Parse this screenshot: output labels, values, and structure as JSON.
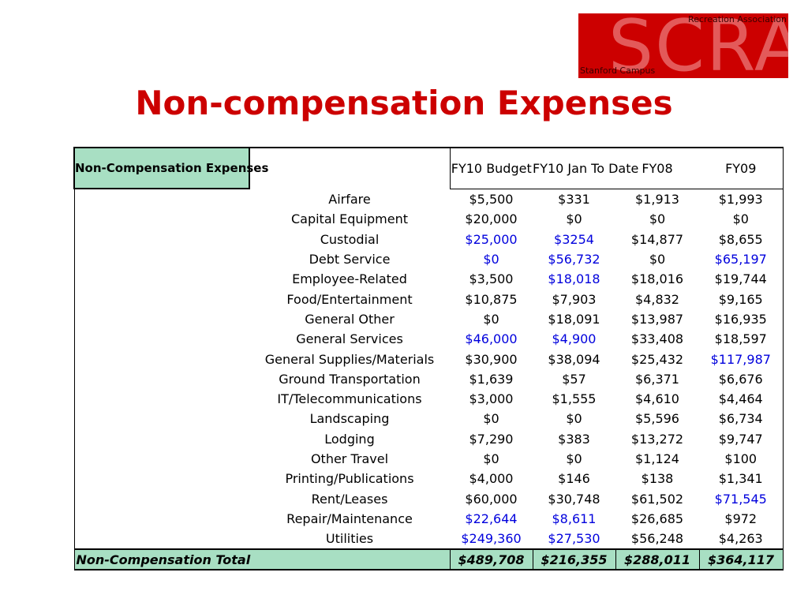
{
  "logo": {
    "big_text": "SCRA",
    "top_text": "Recreation Association",
    "bottom_text": "Stanford Campus"
  },
  "title": "Non-compensation Expenses",
  "colors": {
    "title_red": "#cc0000",
    "header_green": "#a8dfc3",
    "highlight_blue": "#0000dd"
  },
  "table": {
    "header_label": "Non-Compensation Expenses",
    "columns": [
      "FY10 Budget",
      "FY10 Jan To Date",
      "FY08",
      "FY09"
    ],
    "rows": [
      {
        "name": "Airfare",
        "values": [
          "$5,500",
          "$331",
          "$1,913",
          "$1,993"
        ],
        "blue": [
          false,
          false,
          false,
          false
        ]
      },
      {
        "name": "Capital Equipment",
        "values": [
          "$20,000",
          "$0",
          "$0",
          "$0"
        ],
        "blue": [
          false,
          false,
          false,
          false
        ]
      },
      {
        "name": "Custodial",
        "values": [
          "$25,000",
          "$3254",
          "$14,877",
          "$8,655"
        ],
        "blue": [
          true,
          true,
          false,
          false
        ]
      },
      {
        "name": "Debt Service",
        "values": [
          "$0",
          "$56,732",
          "$0",
          "$65,197"
        ],
        "blue": [
          true,
          true,
          false,
          true
        ]
      },
      {
        "name": "Employee-Related",
        "values": [
          "$3,500",
          "$18,018",
          "$18,016",
          "$19,744"
        ],
        "blue": [
          false,
          true,
          false,
          false
        ]
      },
      {
        "name": "Food/Entertainment",
        "values": [
          "$10,875",
          "$7,903",
          "$4,832",
          "$9,165"
        ],
        "blue": [
          false,
          false,
          false,
          false
        ]
      },
      {
        "name": "General Other",
        "values": [
          "$0",
          "$18,091",
          "$13,987",
          "$16,935"
        ],
        "blue": [
          false,
          false,
          false,
          false
        ]
      },
      {
        "name": "General Services",
        "values": [
          "$46,000",
          "$4,900",
          "$33,408",
          "$18,597"
        ],
        "blue": [
          true,
          true,
          false,
          false
        ]
      },
      {
        "name": "General Supplies/Materials",
        "values": [
          "$30,900",
          "$38,094",
          "$25,432",
          "$117,987"
        ],
        "blue": [
          false,
          false,
          false,
          true
        ]
      },
      {
        "name": "Ground Transportation",
        "values": [
          "$1,639",
          "$57",
          "$6,371",
          "$6,676"
        ],
        "blue": [
          false,
          false,
          false,
          false
        ]
      },
      {
        "name": "IT/Telecommunications",
        "values": [
          "$3,000",
          "$1,555",
          "$4,610",
          "$4,464"
        ],
        "blue": [
          false,
          false,
          false,
          false
        ]
      },
      {
        "name": "Landscaping",
        "values": [
          "$0",
          "$0",
          "$5,596",
          "$6,734"
        ],
        "blue": [
          false,
          false,
          false,
          false
        ]
      },
      {
        "name": "Lodging",
        "values": [
          "$7,290",
          "$383",
          "$13,272",
          "$9,747"
        ],
        "blue": [
          false,
          false,
          false,
          false
        ]
      },
      {
        "name": "Other Travel",
        "values": [
          "$0",
          "$0",
          "$1,124",
          "$100"
        ],
        "blue": [
          false,
          false,
          false,
          false
        ]
      },
      {
        "name": "Printing/Publications",
        "values": [
          "$4,000",
          "$146",
          "$138",
          "$1,341"
        ],
        "blue": [
          false,
          false,
          false,
          false
        ]
      },
      {
        "name": "Rent/Leases",
        "values": [
          "$60,000",
          "$30,748",
          "$61,502",
          "$71,545"
        ],
        "blue": [
          false,
          false,
          false,
          true
        ]
      },
      {
        "name": "Repair/Maintenance",
        "values": [
          "$22,644",
          "$8,611",
          "$26,685",
          "$972"
        ],
        "blue": [
          true,
          true,
          false,
          false
        ]
      },
      {
        "name": "Utilities",
        "values": [
          "$249,360",
          "$27,530",
          "$56,248",
          "$4,263"
        ],
        "blue": [
          true,
          true,
          false,
          false
        ]
      }
    ],
    "total": {
      "label": "Non-Compensation Total",
      "values": [
        "$489,708",
        "$216,355",
        "$288,011",
        "$364,117"
      ]
    }
  }
}
